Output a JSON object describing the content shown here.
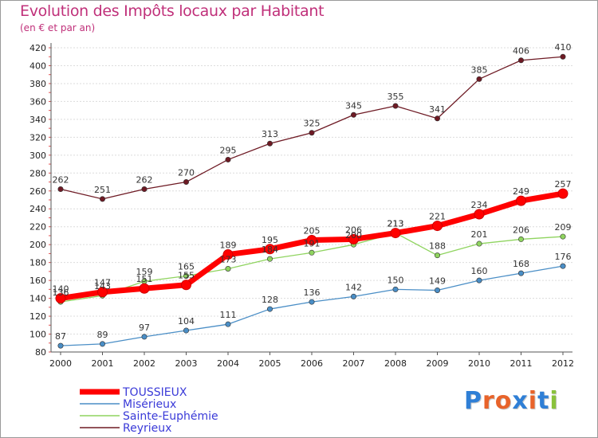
{
  "title": "Evolution des Impôts locaux par Habitant",
  "subtitle": "(en € et par an)",
  "logo": {
    "letters": [
      "P",
      "r",
      "o",
      "x",
      "i",
      "t",
      "i"
    ],
    "colors": [
      "#2f7fd6",
      "#e8632a",
      "#e8632a",
      "#2f7fd6",
      "#e8632a",
      "#2f7fd6",
      "#8ac23c"
    ]
  },
  "chart_data": {
    "type": "line",
    "x": [
      "2000",
      "2001",
      "2002",
      "2003",
      "2004",
      "2005",
      "2006",
      "2007",
      "2008",
      "2009",
      "2010",
      "2011",
      "2012"
    ],
    "ylim": [
      80,
      420
    ],
    "yticks": [
      80,
      100,
      120,
      140,
      160,
      180,
      200,
      220,
      240,
      260,
      280,
      300,
      320,
      340,
      360,
      380,
      400,
      420
    ],
    "grid": "horizontal",
    "legend_position": "bottom-left",
    "series": [
      {
        "name": "Reyrieux",
        "color": "#6e1a24",
        "values": [
          262,
          251,
          262,
          270,
          295,
          313,
          325,
          345,
          355,
          341,
          385,
          406,
          410
        ]
      },
      {
        "name": "Sainte-Euphémie",
        "color": "#8fd45f",
        "values": [
          136,
          143,
          159,
          165,
          173,
          184,
          191,
          200,
          213,
          188,
          201,
          206,
          209
        ]
      },
      {
        "name": "Misérieux",
        "color": "#4a8ec6",
        "values": [
          87,
          89,
          97,
          104,
          111,
          128,
          136,
          142,
          150,
          149,
          160,
          168,
          176
        ]
      },
      {
        "name": "TOUSSIEUX",
        "color": "#ff0000",
        "values": [
          140,
          147,
          151,
          155,
          189,
          195,
          205,
          206,
          213,
          221,
          234,
          249,
          257
        ]
      }
    ],
    "legend_order": [
      "TOUSSIEUX",
      "Misérieux",
      "Sainte-Euphémie",
      "Reyrieux"
    ]
  }
}
